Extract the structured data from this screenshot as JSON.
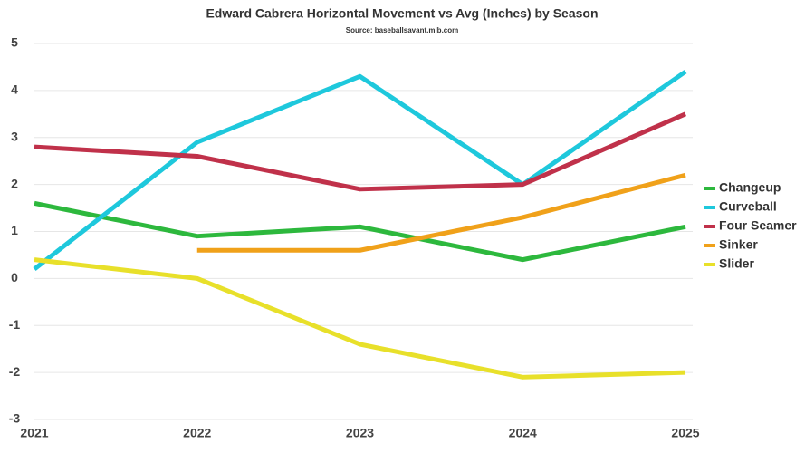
{
  "chart_data": {
    "type": "line",
    "title": "Edward Cabrera Horizontal Movement vs Avg (Inches) by Season",
    "subtitle": "Source: baseballsavant.mlb.com",
    "categories": [
      "2021",
      "2022",
      "2023",
      "2024",
      "2025"
    ],
    "series": [
      {
        "name": "Changeup",
        "color": "#2db83d",
        "values": [
          1.6,
          0.9,
          1.1,
          0.4,
          1.1
        ]
      },
      {
        "name": "Curveball",
        "color": "#1ec8dc",
        "values": [
          0.2,
          2.9,
          4.3,
          2.0,
          4.4
        ]
      },
      {
        "name": "Four Seamer",
        "color": "#c0314a",
        "values": [
          2.8,
          2.6,
          1.9,
          2.0,
          3.5
        ]
      },
      {
        "name": "Sinker",
        "color": "#f0a11a",
        "values": [
          null,
          0.6,
          0.6,
          1.3,
          2.2
        ]
      },
      {
        "name": "Slider",
        "color": "#e8e02a",
        "values": [
          0.4,
          0.0,
          -1.4,
          -2.1,
          -2.0
        ]
      }
    ],
    "ylim": [
      -3,
      5
    ],
    "yticks": [
      -3,
      -2,
      -1,
      0,
      1,
      2,
      3,
      4,
      5
    ],
    "grid": true,
    "legend": "right"
  }
}
